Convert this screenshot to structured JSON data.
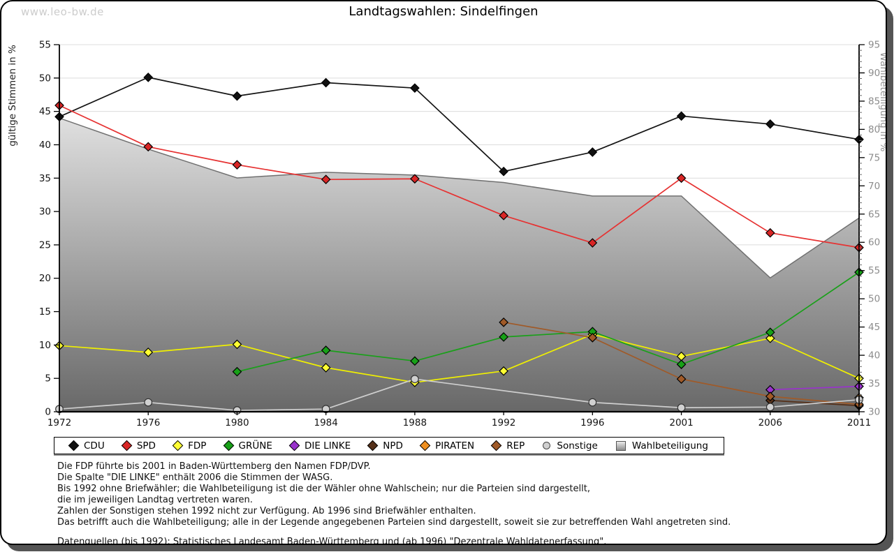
{
  "page": {
    "watermark": "www.leo-bw.de"
  },
  "chart_data": {
    "type": "line",
    "title": "Landtagswahlen: Sindelfingen",
    "categories": [
      "1972",
      "1976",
      "1980",
      "1984",
      "1988",
      "1992",
      "1996",
      "2001",
      "2006",
      "2011"
    ],
    "ylabel_left": "gültige Stimmen in %",
    "ylabel_right": "Wahlbeteiligung in %",
    "ylim_left": [
      0,
      55
    ],
    "ylim_right": [
      30,
      95
    ],
    "ytick_step": 5,
    "grid": true,
    "legend_position": "bottom",
    "series": [
      {
        "name": "CDU",
        "color": "#141414",
        "marker_fill": "#111111",
        "marker": "diamond",
        "axis": "left",
        "kind": "line",
        "values": [
          44.2,
          50.1,
          47.3,
          49.3,
          48.5,
          36.0,
          38.9,
          44.3,
          43.1,
          40.8
        ]
      },
      {
        "name": "SPD",
        "color": "#e63232",
        "marker_fill": "#d92525",
        "marker": "diamond",
        "axis": "left",
        "kind": "line",
        "values": [
          45.9,
          39.7,
          37.0,
          34.8,
          34.9,
          29.4,
          25.3,
          35.0,
          26.8,
          24.6
        ]
      },
      {
        "name": "FDP",
        "color": "#f0f000",
        "marker_fill": "#ffff33",
        "marker": "diamond",
        "axis": "left",
        "kind": "line",
        "values": [
          9.9,
          8.9,
          10.1,
          6.6,
          4.4,
          6.1,
          11.6,
          8.3,
          11.0,
          5.0
        ]
      },
      {
        "name": "GRÜNE",
        "color": "#1aa01a",
        "marker_fill": "#17a017",
        "marker": "diamond",
        "axis": "left",
        "kind": "line",
        "values": [
          null,
          null,
          6.0,
          9.2,
          7.6,
          11.2,
          12.0,
          7.1,
          11.9,
          20.9
        ]
      },
      {
        "name": "DIE LINKE",
        "color": "#9932cc",
        "marker_fill": "#9932cc",
        "marker": "diamond",
        "axis": "left",
        "kind": "line",
        "values": [
          null,
          null,
          null,
          null,
          null,
          null,
          null,
          null,
          3.3,
          3.8
        ]
      },
      {
        "name": "NPD",
        "color": "#553019",
        "marker_fill": "#553019",
        "marker": "diamond",
        "axis": "left",
        "kind": "line",
        "values": [
          null,
          null,
          null,
          null,
          null,
          null,
          null,
          null,
          1.7,
          0.9
        ]
      },
      {
        "name": "PIRATEN",
        "color": "#ef8f1f",
        "marker_fill": "#ef8f1f",
        "marker": "diamond",
        "axis": "left",
        "kind": "line",
        "values": [
          null,
          null,
          null,
          null,
          null,
          null,
          null,
          null,
          null,
          2.1
        ]
      },
      {
        "name": "REP",
        "color": "#a05a28",
        "marker_fill": "#a05a28",
        "marker": "diamond",
        "axis": "left",
        "kind": "line",
        "values": [
          null,
          null,
          null,
          null,
          null,
          13.4,
          11.1,
          4.9,
          2.3,
          1.1
        ]
      },
      {
        "name": "Sonstige",
        "color": "#cfcfcf",
        "marker_fill": "#d0d0d0",
        "marker": "circle",
        "axis": "left",
        "kind": "line",
        "values": [
          0.4,
          1.4,
          0.2,
          0.4,
          4.9,
          null,
          1.4,
          0.6,
          0.7,
          1.8
        ]
      },
      {
        "name": "Wahlbeteiligung",
        "color": "#707070",
        "marker_fill": "#aaaaaa",
        "marker": "square",
        "axis": "right",
        "kind": "area",
        "values": [
          82.0,
          76.5,
          71.4,
          72.4,
          71.9,
          70.6,
          68.2,
          68.2,
          53.7,
          64.3
        ]
      }
    ],
    "area_gradient": [
      "#fdfdfd",
      "#686868"
    ],
    "grid_color": "#dcdcdc",
    "left_tick_color": "#141414",
    "right_tick_color": "#8c8c8c"
  },
  "notes": {
    "lines": [
      "Die FDP führte bis 2001 in Baden-Württemberg den Namen FDP/DVP.",
      "Die Spalte \"DIE LINKE\" enthält 2006 die Stimmen der WASG.",
      "Bis 1992 ohne Briefwähler; die Wahlbeteiligung ist die der Wähler ohne Wahlschein; nur die Parteien sind dargestellt,",
      "die im jeweiligen Landtag vertreten waren.",
      "Zahlen der Sonstigen stehen 1992 nicht zur Verfügung. Ab 1996 sind Briefwähler enthalten.",
      "Das betrifft auch die Wahlbeteiligung; alle in der Legende angegebenen Parteien sind dargestellt, soweit sie zur betreffenden Wahl angetreten sind."
    ],
    "source": "Datenquellen (bis 1992): Statistisches Landesamt Baden-Württemberg und (ab 1996) \"Dezentrale Wahldatenerfassung\"."
  }
}
